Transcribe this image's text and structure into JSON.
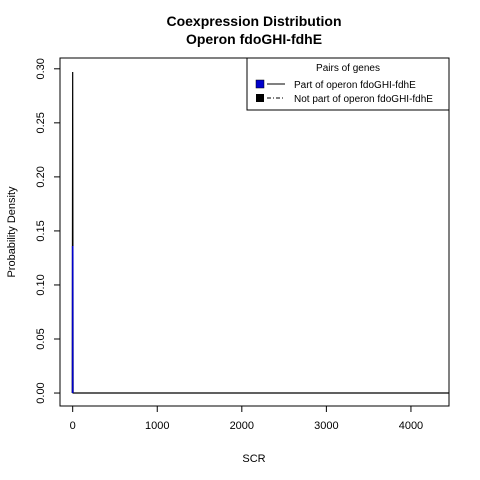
{
  "chart_data": {
    "type": "line",
    "title_lines": [
      "Coexpression Distribution",
      "Operon fdoGHI-fdhE"
    ],
    "xlabel": "SCR",
    "ylabel": "Probability Density",
    "xlim": [
      -150,
      4450
    ],
    "ylim": [
      -0.012,
      0.31
    ],
    "x_ticks": [
      {
        "value": 0,
        "label": "0"
      },
      {
        "value": 1000,
        "label": "1000"
      },
      {
        "value": 2000,
        "label": "2000"
      },
      {
        "value": 3000,
        "label": "3000"
      },
      {
        "value": 4000,
        "label": "4000"
      }
    ],
    "y_ticks": [
      {
        "value": 0.0,
        "label": "0.00"
      },
      {
        "value": 0.05,
        "label": "0.05"
      },
      {
        "value": 0.1,
        "label": "0.10"
      },
      {
        "value": 0.15,
        "label": "0.15"
      },
      {
        "value": 0.2,
        "label": "0.20"
      },
      {
        "value": 0.25,
        "label": "0.25"
      },
      {
        "value": 0.3,
        "label": "0.30"
      }
    ],
    "grid": false,
    "legend": {
      "title": "Pairs of genes",
      "placement": "top-right"
    },
    "series": [
      {
        "name": "Part of operon fdoGHI-fdhE",
        "color": "#0000cc",
        "line_style": "solid",
        "points": [
          [
            0,
            0
          ],
          [
            0,
            0.136
          ],
          [
            0,
            0
          ]
        ]
      },
      {
        "name": "Not part of operon fdoGHI-fdhE",
        "color": "#000000",
        "line_style": "dashdot",
        "points": [
          [
            -5,
            0
          ],
          [
            0,
            0.297
          ],
          [
            5,
            0
          ],
          [
            4450,
            0
          ]
        ]
      }
    ]
  }
}
